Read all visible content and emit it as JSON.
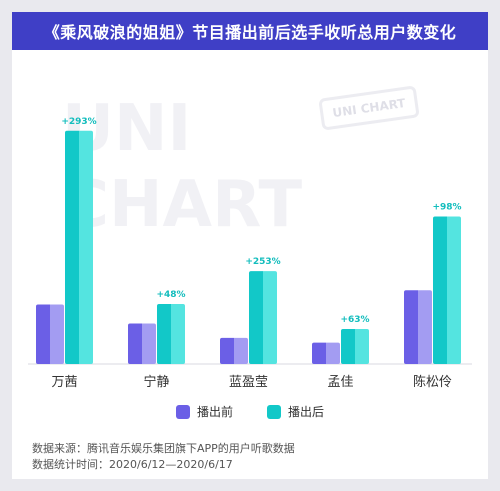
{
  "title": "《乘风破浪的姐姐》节目播出前后选手收听总用户数变化",
  "watermark": {
    "line1": "UNI",
    "line2": "CHART",
    "badge": "UNI CHART"
  },
  "colors": {
    "before_dark": "#6b5fe6",
    "before_light": "#a39cf2",
    "after_dark": "#12c8c8",
    "after_light": "#54e4e0",
    "pct_label": "#13bdbd",
    "title_bg": "#3f3fc6"
  },
  "chart_data": {
    "type": "bar",
    "categories": [
      "万茜",
      "宁静",
      "蓝盈莹",
      "孟佳",
      "陈松伶"
    ],
    "series": [
      {
        "name": "播出前",
        "values": [
          25,
          17,
          11,
          9,
          31
        ]
      },
      {
        "name": "播出后",
        "values": [
          98,
          25.2,
          39,
          14.7,
          62
        ]
      }
    ],
    "annotations": [
      "+293%",
      "+48%",
      "+253%",
      "+63%",
      "+98%"
    ],
    "ylim": [
      0,
      100
    ],
    "grid": false,
    "legend": "bottom"
  },
  "footer": {
    "source": "数据来源：腾讯音乐娱乐集团旗下APP的用户听歌数据",
    "period": "数据统计时间：2020/6/12—2020/6/17"
  }
}
